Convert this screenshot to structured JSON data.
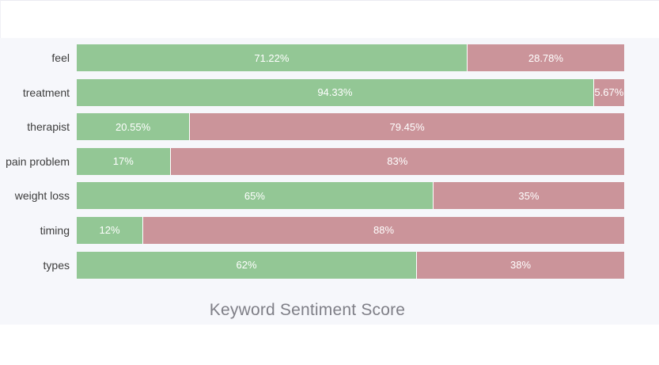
{
  "chart": {
    "positive_color": "#93c795",
    "negative_color": "#cb949a",
    "plot_background": "#f6f7fb",
    "title_color": "#7f7f87"
  },
  "chart_data": {
    "type": "bar",
    "orientation": "horizontal",
    "stacked": true,
    "title": "Keyword Sentiment Score",
    "categories": [
      "feel",
      "treatment",
      "therapist",
      "pain problem",
      "weight loss",
      "timing",
      "types"
    ],
    "series": [
      {
        "name": "positive",
        "color": "#93c795",
        "values": [
          71.22,
          94.33,
          20.55,
          17,
          65,
          12,
          62
        ]
      },
      {
        "name": "negative",
        "color": "#cb949a",
        "values": [
          28.78,
          5.67,
          79.45,
          83,
          35,
          88,
          38
        ]
      }
    ],
    "value_labels": {
      "positive": [
        "71.22%",
        "94.33%",
        "20.55%",
        "17%",
        "65%",
        "12%",
        "62%"
      ],
      "negative": [
        "28.78%",
        "5.67%",
        "79.45%",
        "83%",
        "35%",
        "88%",
        "38%"
      ]
    },
    "xlim": [
      0,
      100
    ],
    "grid": false,
    "legend": "none",
    "axes_visible": false
  }
}
